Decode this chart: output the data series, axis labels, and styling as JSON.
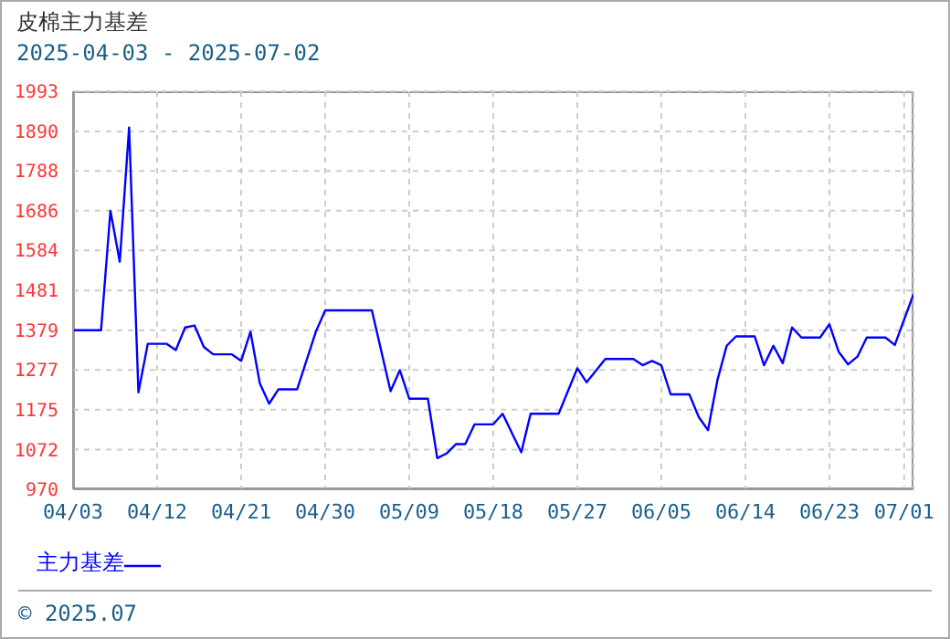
{
  "chart_data": {
    "type": "line",
    "title": "皮棉主力基差",
    "subtitle": "2025-04-03 - 2025-07-02",
    "x": [
      "2025-04-03",
      "2025-04-06",
      "2025-04-07",
      "2025-04-08",
      "2025-04-09",
      "2025-04-10",
      "2025-04-11",
      "2025-04-13",
      "2025-04-14",
      "2025-04-15",
      "2025-04-16",
      "2025-04-17",
      "2025-04-18",
      "2025-04-20",
      "2025-04-21",
      "2025-04-22",
      "2025-04-23",
      "2025-04-24",
      "2025-04-25",
      "2025-04-27",
      "2025-04-29",
      "2025-04-30",
      "2025-05-05",
      "2025-05-07",
      "2025-05-08",
      "2025-05-09",
      "2025-05-11",
      "2025-05-12",
      "2025-05-13",
      "2025-05-14",
      "2025-05-15",
      "2025-05-16",
      "2025-05-18",
      "2025-05-19",
      "2025-05-21",
      "2025-05-22",
      "2025-05-25",
      "2025-05-27",
      "2025-05-28",
      "2025-05-30",
      "2025-06-02",
      "2025-06-03",
      "2025-06-04",
      "2025-06-05",
      "2025-06-06",
      "2025-06-08",
      "2025-06-09",
      "2025-06-10",
      "2025-06-11",
      "2025-06-12",
      "2025-06-13",
      "2025-06-15",
      "2025-06-16",
      "2025-06-17",
      "2025-06-18",
      "2025-06-19",
      "2025-06-20",
      "2025-06-22",
      "2025-06-23",
      "2025-06-24",
      "2025-06-25",
      "2025-06-26",
      "2025-06-27",
      "2025-06-29",
      "2025-06-30",
      "2025-07-02"
    ],
    "series": [
      {
        "name": "主力基差",
        "color": "#0000ff",
        "values": [
          1379,
          1379,
          1686,
          1555,
          1900,
          1219,
          1344,
          1344,
          1328,
          1386,
          1391,
          1336,
          1317,
          1317,
          1300,
          1375,
          1242,
          1190,
          1227,
          1227,
          1375,
          1430,
          1430,
          1222,
          1276,
          1203,
          1203,
          1050,
          1062,
          1086,
          1086,
          1137,
          1137,
          1164,
          1065,
          1164,
          1164,
          1281,
          1245,
          1305,
          1305,
          1289,
          1300,
          1289,
          1214,
          1214,
          1156,
          1122,
          1250,
          1339,
          1363,
          1363,
          1289,
          1339,
          1294,
          1386,
          1360,
          1360,
          1394,
          1323,
          1291,
          1311,
          1360,
          1360,
          1341,
          1471
        ]
      }
    ],
    "xlim": [
      "2025-04-03",
      "2025-07-02"
    ],
    "xticks": [
      {
        "value": "2025-04-03",
        "label": "04/03"
      },
      {
        "value": "2025-04-12",
        "label": "04/12"
      },
      {
        "value": "2025-04-21",
        "label": "04/21"
      },
      {
        "value": "2025-04-30",
        "label": "04/30"
      },
      {
        "value": "2025-05-09",
        "label": "05/09"
      },
      {
        "value": "2025-05-18",
        "label": "05/18"
      },
      {
        "value": "2025-05-27",
        "label": "05/27"
      },
      {
        "value": "2025-06-05",
        "label": "06/05"
      },
      {
        "value": "2025-06-14",
        "label": "06/14"
      },
      {
        "value": "2025-06-23",
        "label": "06/23"
      },
      {
        "value": "2025-07-01",
        "label": "07/01"
      }
    ],
    "ylim": [
      970,
      1993
    ],
    "yticks": [
      970,
      1072,
      1175,
      1277,
      1379,
      1481,
      1584,
      1686,
      1788,
      1890,
      1993
    ],
    "grid": true,
    "legend": "bottom left",
    "marker": "none",
    "line_style": "solid",
    "annotations": [
      "© 2025.07"
    ]
  }
}
